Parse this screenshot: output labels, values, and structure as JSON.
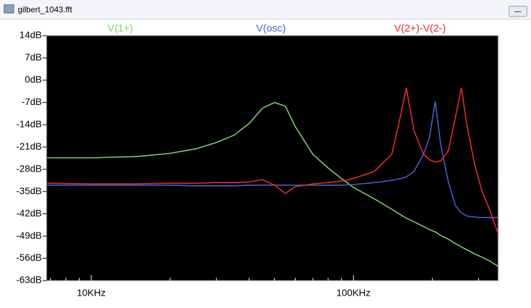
{
  "window": {
    "title": "gilbert_1043.fft"
  },
  "chart_data": {
    "type": "line",
    "x_log": true,
    "background": "#000000",
    "xlim": [
      6760,
      356000
    ],
    "xticks": [
      {
        "value": 10000,
        "label": "10KHz"
      },
      {
        "value": 100000,
        "label": "100KHz"
      }
    ],
    "minor_xticks": [
      7000,
      8000,
      9000,
      20000,
      30000,
      40000,
      50000,
      60000,
      70000,
      80000,
      90000,
      200000,
      300000
    ],
    "ylim": [
      -63,
      14
    ],
    "yticks": [
      {
        "value": 14,
        "label": "14dB"
      },
      {
        "value": 7,
        "label": "7dB"
      },
      {
        "value": 0,
        "label": "0dB"
      },
      {
        "value": -7,
        "label": "-7dB"
      },
      {
        "value": -14,
        "label": "-14dB"
      },
      {
        "value": -21,
        "label": "-21dB"
      },
      {
        "value": -28,
        "label": "-28dB"
      },
      {
        "value": -35,
        "label": "-35dB"
      },
      {
        "value": -42,
        "label": "-42dB"
      },
      {
        "value": -49,
        "label": "-49dB"
      },
      {
        "value": -56,
        "label": "-56dB"
      },
      {
        "value": -63,
        "label": "-63dB"
      }
    ],
    "x": [
      6800,
      10000,
      15000,
      20000,
      25000,
      30000,
      35000,
      40000,
      45000,
      50000,
      55000,
      60000,
      70000,
      80000,
      90000,
      100000,
      120000,
      140000,
      150000,
      159000,
      170000,
      185000,
      195000,
      205000,
      215000,
      230000,
      245000,
      258000,
      270000,
      290000,
      310000,
      330000,
      356000
    ],
    "series": [
      {
        "name": "V(1+)",
        "color": "#7fd36b",
        "values": [
          -24.4,
          -24.4,
          -24,
          -23,
          -21.6,
          -19.6,
          -17.3,
          -13.6,
          -8.8,
          -7,
          -8.2,
          -14.6,
          -23.3,
          -27.6,
          -30.9,
          -33.7,
          -37.3,
          -40.6,
          -42.1,
          -43.4,
          -44.5,
          -46,
          -47,
          -47.7,
          -48.8,
          -50,
          -51.4,
          -52.4,
          -53.3,
          -54.6,
          -55.7,
          -56.8,
          -58.5
        ]
      },
      {
        "name": "V(osc)",
        "color": "#4a5fd0",
        "values": [
          -33,
          -33,
          -33,
          -33,
          -33.2,
          -33.2,
          -33.2,
          -33,
          -33,
          -33,
          -33,
          -33,
          -33,
          -33,
          -33,
          -32.8,
          -32.2,
          -31.5,
          -31,
          -30.4,
          -28.7,
          -23.3,
          -17.9,
          -6.7,
          -20.1,
          -32,
          -39.5,
          -41.7,
          -42.7,
          -43,
          -43.2,
          -43.2,
          -43.2
        ]
      },
      {
        "name": "V(2+)-V(2-)",
        "color": "#ee2b2b",
        "values": [
          -32.4,
          -32.6,
          -32.6,
          -32.4,
          -32.4,
          -32.2,
          -32.2,
          -32,
          -31.3,
          -33,
          -35.6,
          -33.5,
          -32.6,
          -32.2,
          -31.7,
          -30.9,
          -28.7,
          -23.3,
          -12.5,
          -2.4,
          -15.8,
          -23.3,
          -25,
          -25.7,
          -25.4,
          -22.2,
          -11.5,
          -2.4,
          -13.6,
          -26.6,
          -35.2,
          -40.6,
          -48.1
        ]
      }
    ]
  }
}
